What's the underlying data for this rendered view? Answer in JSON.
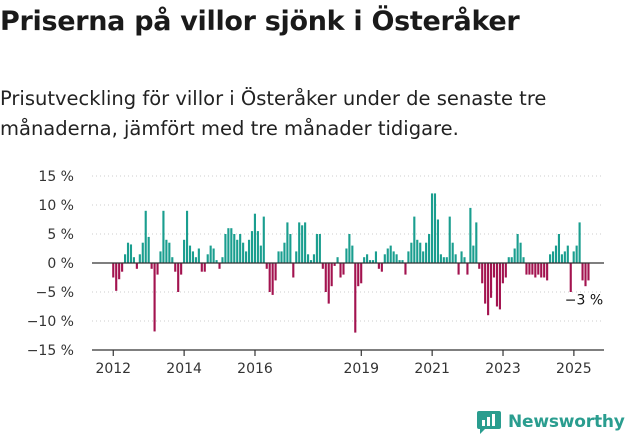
{
  "header": {
    "title": "Priserna på villor sjönk i Österåker",
    "subtitle": "Prisutveckling för villor i Österåker under de senaste tre månaderna, jämfört med tre månader tidigare."
  },
  "brand": {
    "name": "Newsworthy",
    "icon": "newsworthy-logo-icon"
  },
  "colors": {
    "positive": "#1a9e8f",
    "negative": "#a3134f",
    "axis": "#333333",
    "grid": "#cccccc"
  },
  "chart_data": {
    "type": "bar",
    "title": "",
    "xlabel": "",
    "ylabel": "",
    "ylim": [
      -15,
      15
    ],
    "yticks": [
      15,
      10,
      5,
      0,
      -5,
      -10,
      -15
    ],
    "ytick_labels": [
      "15 %",
      "10 %",
      "5 %",
      "0 %",
      "−5 %",
      "−10 %",
      "−15 %"
    ],
    "xticks": [
      2012,
      2014,
      2016,
      2019,
      2021,
      2023,
      2025
    ],
    "xtick_labels": [
      "2012",
      "2014",
      "2016",
      "2019",
      "2021",
      "2023",
      "2025"
    ],
    "xlim": [
      2011.4,
      2025.85
    ],
    "grid": "horizontal",
    "x_start": 2012.0,
    "x_step": 0.0833,
    "values": [
      -2.5,
      -4.8,
      -2.8,
      -1.5,
      1.5,
      3.5,
      3.2,
      1.0,
      -1.0,
      1.5,
      3.5,
      9.0,
      4.5,
      -1.0,
      -11.8,
      -2.0,
      2.0,
      9.0,
      4.0,
      3.5,
      1.0,
      -1.5,
      -5.0,
      -2.0,
      4.0,
      9.0,
      3.0,
      2.0,
      1.0,
      2.5,
      -1.5,
      -1.5,
      1.5,
      3.0,
      2.5,
      0.5,
      -1.0,
      1.0,
      5.0,
      6.0,
      6.0,
      5.0,
      4.0,
      5.0,
      3.5,
      2.0,
      4.0,
      5.5,
      8.5,
      5.5,
      3.0,
      8.0,
      -1.0,
      -5.0,
      -5.5,
      -3.0,
      2.0,
      2.0,
      3.5,
      7.0,
      5.0,
      -2.5,
      2.0,
      7.0,
      6.5,
      7.0,
      1.5,
      0.5,
      1.5,
      5.0,
      5.0,
      -1.0,
      -5.0,
      -7.0,
      -4.0,
      -0.5,
      1.0,
      -2.5,
      -2.0,
      2.5,
      5.0,
      3.0,
      -12.0,
      -4.0,
      -3.5,
      1.0,
      1.5,
      0.5,
      0.5,
      2.0,
      -1.0,
      -1.5,
      1.5,
      2.5,
      3.0,
      2.0,
      1.5,
      0.5,
      0.5,
      -2.0,
      2.0,
      3.5,
      8.0,
      4.0,
      3.5,
      2.0,
      3.5,
      5.0,
      12.0,
      12.0,
      7.5,
      1.5,
      1.0,
      1.0,
      8.0,
      3.5,
      1.5,
      -2.0,
      2.0,
      1.0,
      -2.0,
      9.5,
      3.0,
      7.0,
      -1.0,
      -3.5,
      -7.0,
      -9.0,
      -6.0,
      -2.5,
      -7.5,
      -8.0,
      -3.5,
      -2.5,
      1.0,
      1.0,
      2.5,
      5.0,
      3.5,
      1.0,
      -2.0,
      -2.0,
      -2.0,
      -2.5,
      -2.0,
      -2.5,
      -2.5,
      -3.0,
      1.5,
      2.0,
      3.0,
      5.0,
      1.5,
      2.0,
      3.0,
      -5.0,
      2.0,
      3.0,
      7.0,
      -3.0,
      -4.0,
      -3.0
    ],
    "annotations": [
      {
        "label": "−3 %",
        "x": 2025.25,
        "y": -3
      }
    ]
  }
}
